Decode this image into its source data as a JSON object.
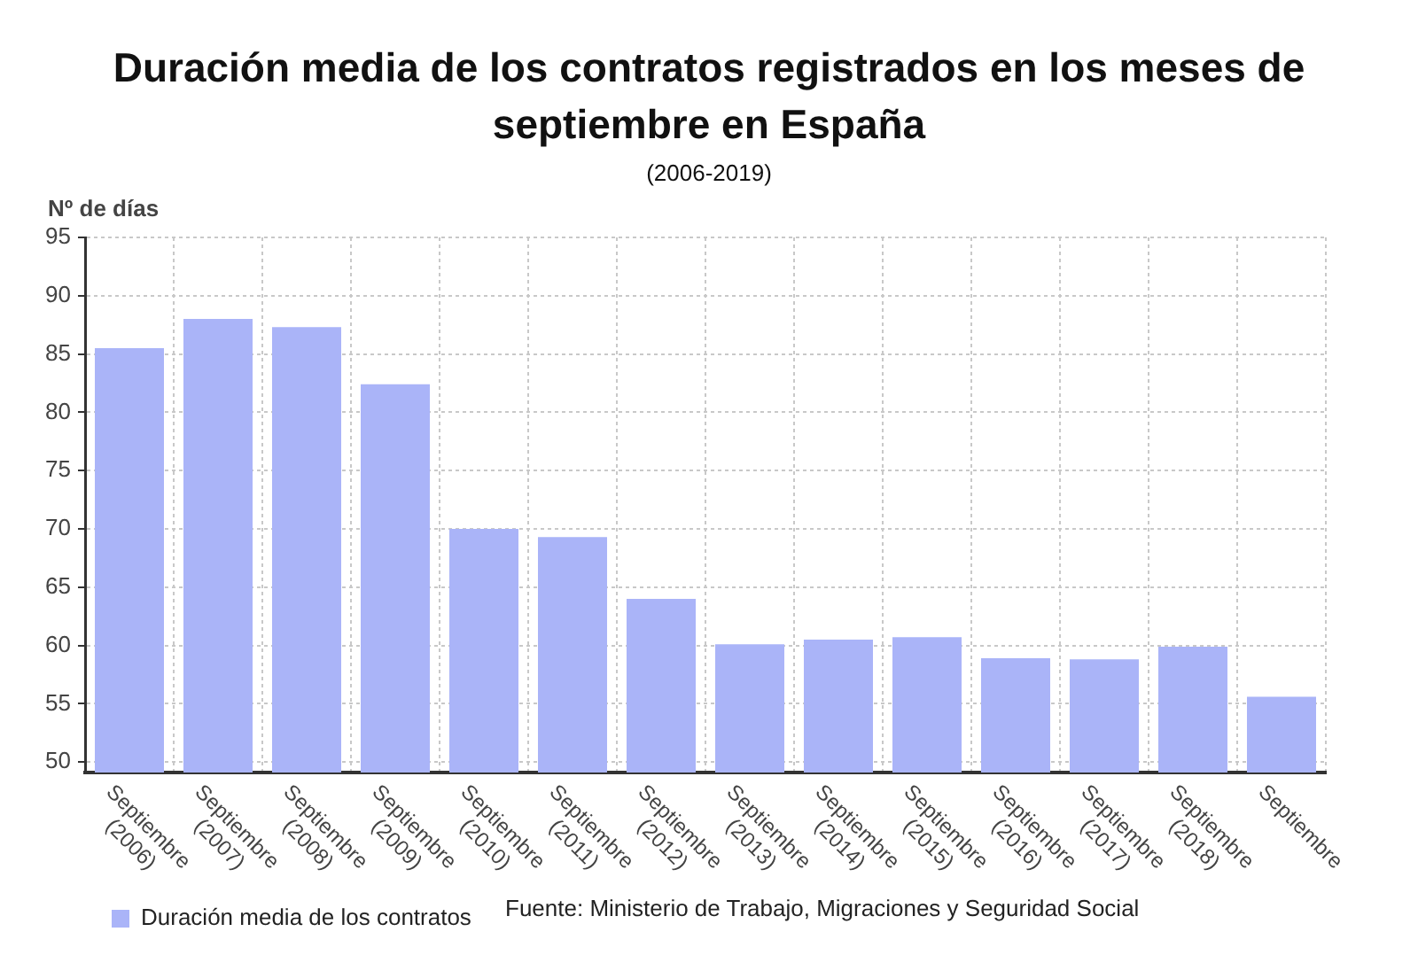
{
  "chart_data": {
    "type": "bar",
    "title": "Duración media de los contratos registrados en los meses de septiembre en España",
    "subtitle": "(2006-2019)",
    "ylabel": "Nº de días",
    "categories": [
      "Septiembre (2006)",
      "Septiembre (2007)",
      "Septiembre (2008)",
      "Septiembre (2009)",
      "Septiembre (2010)",
      "Septiembre (2011)",
      "Septiembre (2012)",
      "Septiembre (2013)",
      "Septiembre (2014)",
      "Septiembre (2015)",
      "Septiembre (2016)",
      "Septiembre (2017)",
      "Septiembre (2018)",
      "Septiembre"
    ],
    "series": [
      {
        "name": "Duración media de los contratos",
        "color": "#aab4f8",
        "values": [
          85.5,
          88.0,
          87.3,
          82.4,
          70.0,
          69.3,
          64.0,
          60.1,
          60.5,
          60.7,
          58.9,
          58.8,
          59.9,
          55.6
        ]
      }
    ],
    "ylim": [
      49.1,
      95
    ],
    "yticks": [
      50,
      55,
      60,
      65,
      70,
      75,
      80,
      85,
      90,
      95
    ],
    "grid": true,
    "legend": "bottom left",
    "annotations": [
      "Fuente: Ministerio de Trabajo, Migraciones y Seguridad Social"
    ]
  }
}
